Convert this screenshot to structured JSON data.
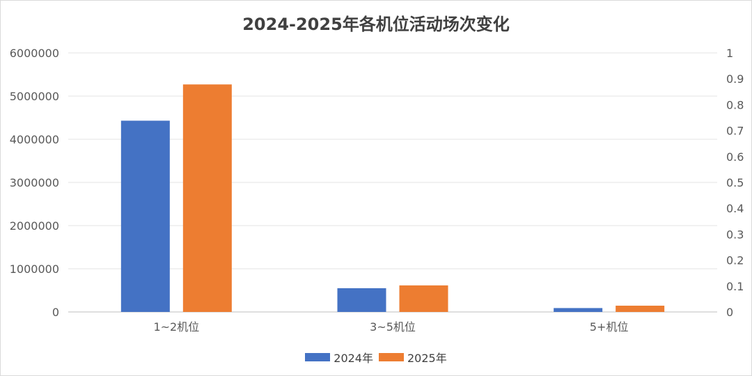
{
  "chart_data": {
    "type": "bar",
    "title": "2024-2025年各机位活动场次变化",
    "categories": [
      "1~2机位",
      "3~5机位",
      "5+机位"
    ],
    "series": [
      {
        "name": "2024年",
        "values": [
          4430000,
          550000,
          90000
        ],
        "color": "#4472C4"
      },
      {
        "name": "2025年",
        "values": [
          5270000,
          615000,
          145000
        ],
        "color": "#ED7D31"
      }
    ],
    "ylim": [
      0,
      6000000
    ],
    "yticks": [
      "0",
      "1000000",
      "2000000",
      "3000000",
      "4000000",
      "5000000",
      "6000000"
    ],
    "y2lim": [
      0,
      1
    ],
    "y2ticks": [
      "0",
      "0.1",
      "0.2",
      "0.3",
      "0.4",
      "0.5",
      "0.6",
      "0.7",
      "0.8",
      "0.9",
      "1"
    ],
    "grid": true,
    "legend_position": "bottom"
  }
}
